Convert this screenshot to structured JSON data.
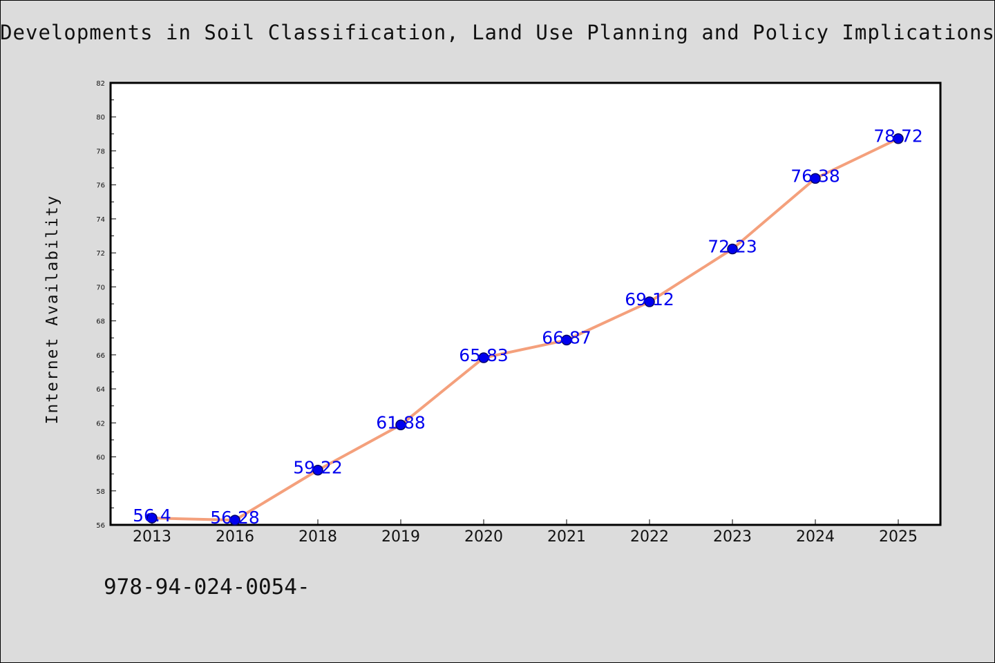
{
  "chart_data": {
    "type": "line",
    "title": "Developments in Soil Classification, Land Use Planning and Policy Implications",
    "xlabel": "",
    "ylabel": "Internet Availability",
    "categories": [
      "2013",
      "2016",
      "2018",
      "2019",
      "2020",
      "2021",
      "2022",
      "2023",
      "2024",
      "2025"
    ],
    "series": [
      {
        "values": [
          56.4,
          56.28,
          59.22,
          61.88,
          65.83,
          66.87,
          69.12,
          72.23,
          76.38,
          78.72
        ],
        "data_labels": [
          "56.4",
          "56.28",
          "59.22",
          "61.88",
          "65.83",
          "66.87",
          "69.12",
          "72.23",
          "76.38",
          "78.72"
        ]
      }
    ],
    "ylim": [
      56,
      82
    ],
    "yticks": [
      56,
      58,
      60,
      62,
      64,
      66,
      68,
      70,
      72,
      74,
      76,
      78,
      80,
      82
    ],
    "grid": false,
    "colors": {
      "line": "#f4a07c",
      "marker": "#0000ee",
      "marker_edge": "#000066",
      "data_label": "#0000ee",
      "plot_background": "#ffffff",
      "figure_background": "#dcdcdc"
    }
  },
  "footer_text": "978-94-024-0054-"
}
